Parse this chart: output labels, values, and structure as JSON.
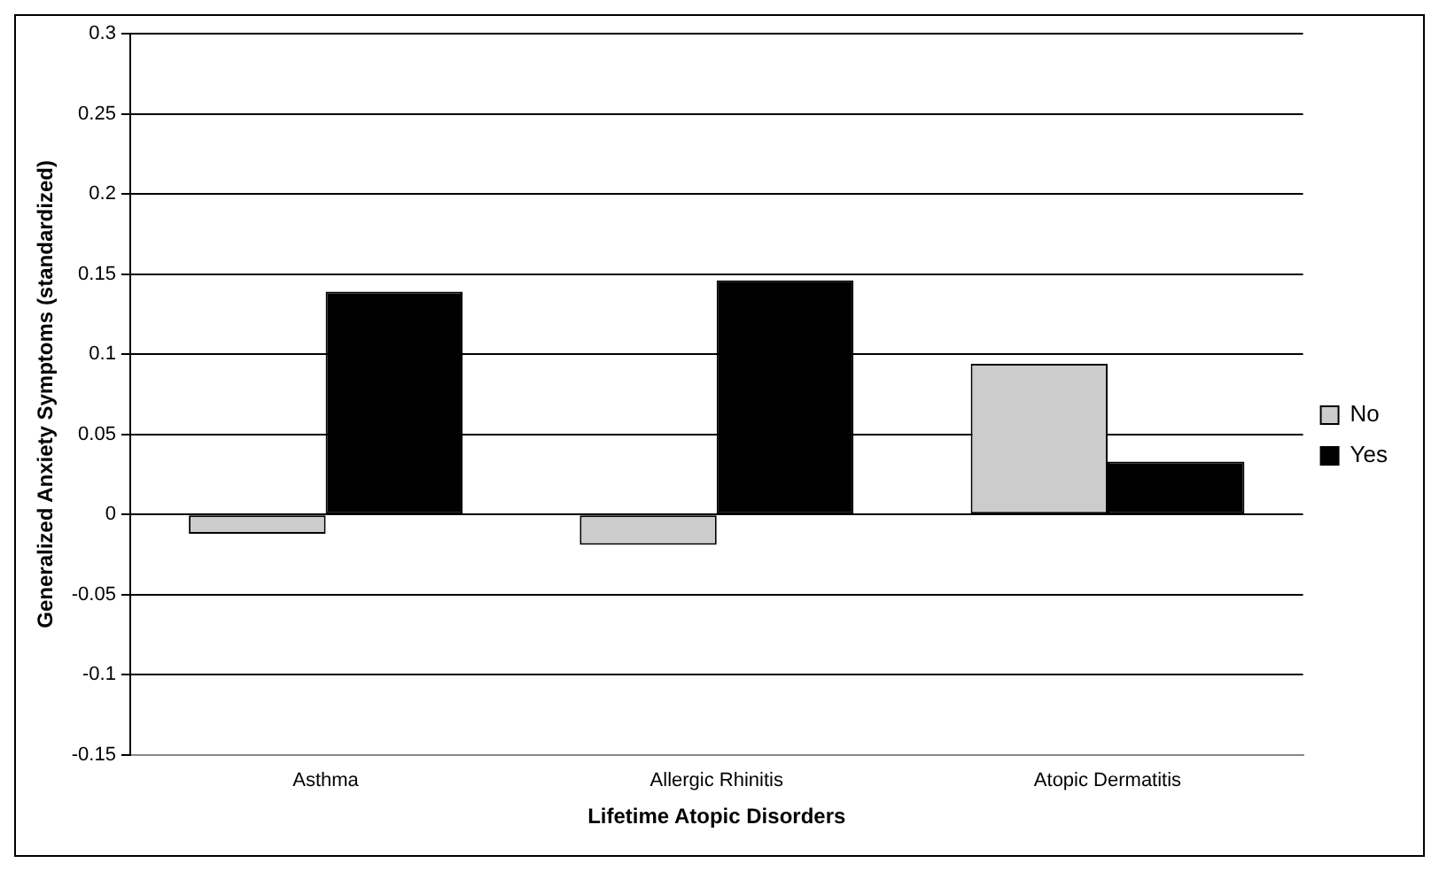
{
  "chart_data": {
    "type": "bar",
    "xlabel": "Lifetime Atopic Disorders",
    "ylabel": "Generalized Anxiety Symptoms (standardized)",
    "categories": [
      "Asthma",
      "Allergic Rhinitis",
      "Atopic Dermatitis"
    ],
    "series": [
      {
        "name": "No",
        "color": "#cccccc",
        "values": [
          -0.012,
          -0.019,
          0.094
        ]
      },
      {
        "name": "Yes",
        "color": "#000000",
        "values": [
          0.139,
          0.146,
          0.033
        ]
      }
    ],
    "ylim": [
      -0.15,
      0.3
    ],
    "yticks": [
      -0.15,
      -0.1,
      -0.05,
      0,
      0.05,
      0.1,
      0.15,
      0.2,
      0.25,
      0.3
    ],
    "grid": "y",
    "legend": "right"
  }
}
